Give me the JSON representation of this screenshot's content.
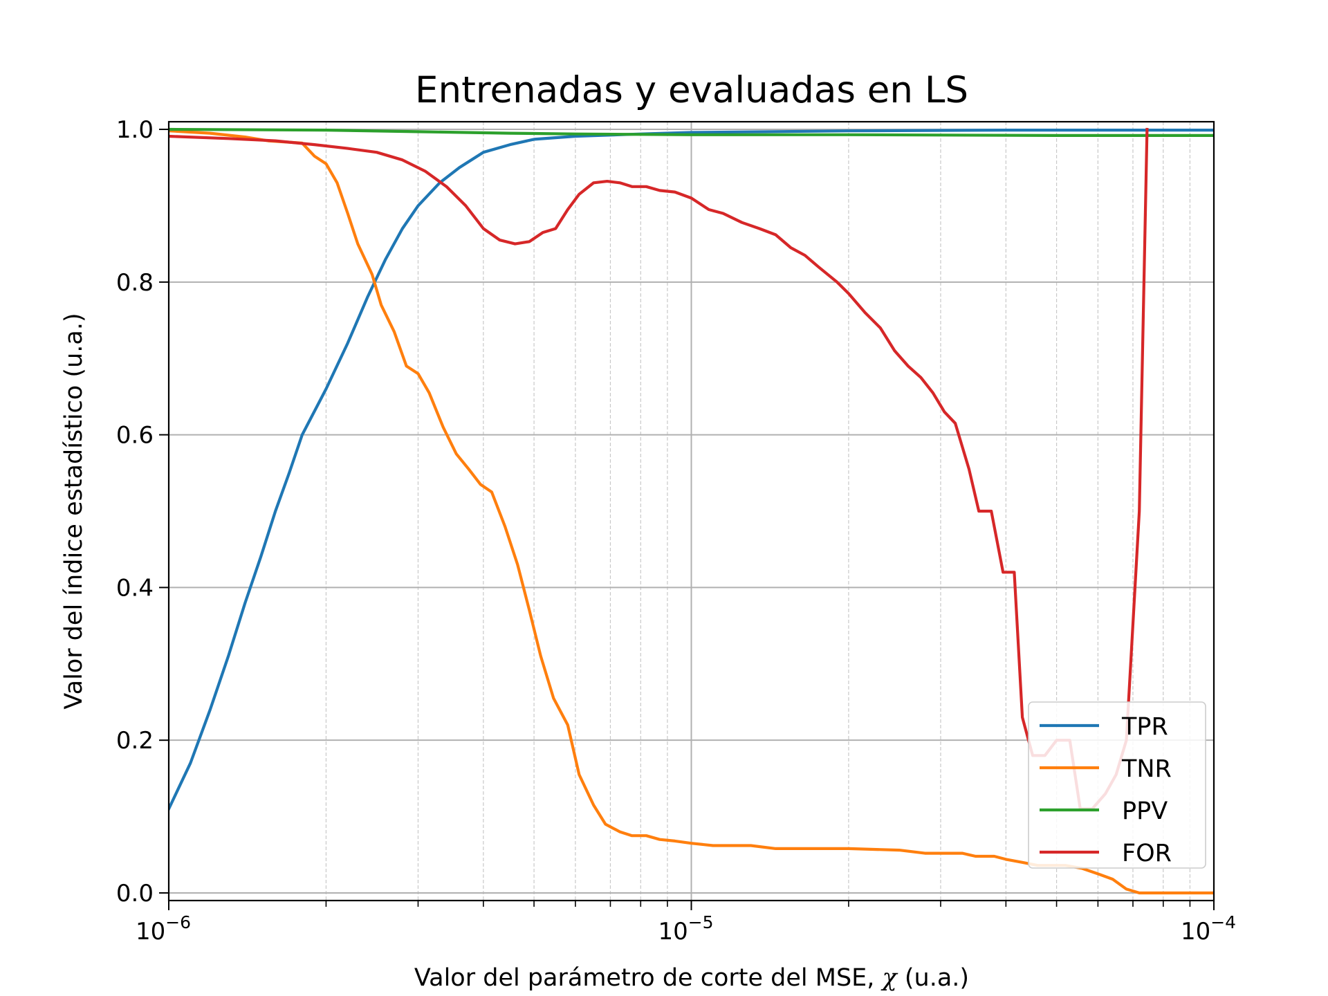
{
  "chart_data": {
    "type": "line",
    "title": "Entrenadas y evaluadas en LS",
    "xlabel_main": "Valor del parámetro de corte del MSE, ",
    "xlabel_symbol": "χ",
    "xlabel_tail": " (u.a.)",
    "ylabel": "Valor del índice estadístico (u.a.)",
    "xscale": "log",
    "xlim": [
      1e-06,
      0.0001
    ],
    "ylim": [
      -0.01,
      1.01
    ],
    "x_ticks": [
      {
        "value": 1e-06,
        "base": "10",
        "exp": "−6"
      },
      {
        "value": 1e-05,
        "base": "10",
        "exp": "−5"
      },
      {
        "value": 0.0001,
        "base": "10",
        "exp": "−4"
      }
    ],
    "y_ticks": [
      {
        "value": 0.0,
        "label": "0.0"
      },
      {
        "value": 0.2,
        "label": "0.2"
      },
      {
        "value": 0.4,
        "label": "0.4"
      },
      {
        "value": 0.6,
        "label": "0.6"
      },
      {
        "value": 0.8,
        "label": "0.8"
      },
      {
        "value": 1.0,
        "label": "1.0"
      }
    ],
    "grid": true,
    "legend_position": "lower-right",
    "series": [
      {
        "name": "TPR",
        "color": "#1f77b4",
        "points": [
          [
            1e-06,
            0.11
          ],
          [
            1.1e-06,
            0.17
          ],
          [
            1.2e-06,
            0.24
          ],
          [
            1.3e-06,
            0.31
          ],
          [
            1.4e-06,
            0.38
          ],
          [
            1.5e-06,
            0.44
          ],
          [
            1.6e-06,
            0.5
          ],
          [
            1.7e-06,
            0.55
          ],
          [
            1.8e-06,
            0.6
          ],
          [
            2e-06,
            0.66
          ],
          [
            2.2e-06,
            0.72
          ],
          [
            2.4e-06,
            0.78
          ],
          [
            2.6e-06,
            0.83
          ],
          [
            2.8e-06,
            0.87
          ],
          [
            3e-06,
            0.9
          ],
          [
            3.3e-06,
            0.93
          ],
          [
            3.6e-06,
            0.95
          ],
          [
            4e-06,
            0.97
          ],
          [
            4.5e-06,
            0.98
          ],
          [
            5e-06,
            0.987
          ],
          [
            6e-06,
            0.991
          ],
          [
            8e-06,
            0.994
          ],
          [
            1e-05,
            0.996
          ],
          [
            2e-05,
            0.998
          ],
          [
            4e-05,
            0.999
          ],
          [
            0.0001,
            0.999
          ]
        ]
      },
      {
        "name": "TNR",
        "color": "#ff7f0e",
        "points": [
          [
            1e-06,
            0.998
          ],
          [
            1.2e-06,
            0.995
          ],
          [
            1.4e-06,
            0.99
          ],
          [
            1.55e-06,
            0.985
          ],
          [
            1.8e-06,
            0.982
          ],
          [
            1.9e-06,
            0.965
          ],
          [
            2e-06,
            0.955
          ],
          [
            2.1e-06,
            0.93
          ],
          [
            2.2e-06,
            0.89
          ],
          [
            2.3e-06,
            0.85
          ],
          [
            2.45e-06,
            0.81
          ],
          [
            2.55e-06,
            0.77
          ],
          [
            2.7e-06,
            0.735
          ],
          [
            2.85e-06,
            0.69
          ],
          [
            3e-06,
            0.68
          ],
          [
            3.15e-06,
            0.655
          ],
          [
            3.35e-06,
            0.61
          ],
          [
            3.55e-06,
            0.575
          ],
          [
            3.75e-06,
            0.555
          ],
          [
            3.95e-06,
            0.535
          ],
          [
            4.15e-06,
            0.525
          ],
          [
            4.4e-06,
            0.48
          ],
          [
            4.65e-06,
            0.43
          ],
          [
            4.9e-06,
            0.37
          ],
          [
            5.15e-06,
            0.31
          ],
          [
            5.45e-06,
            0.255
          ],
          [
            5.8e-06,
            0.22
          ],
          [
            6.1e-06,
            0.155
          ],
          [
            6.5e-06,
            0.115
          ],
          [
            6.85e-06,
            0.09
          ],
          [
            7.3e-06,
            0.08
          ],
          [
            7.7e-06,
            0.075
          ],
          [
            8.2e-06,
            0.075
          ],
          [
            8.7e-06,
            0.07
          ],
          [
            9.3e-06,
            0.068
          ],
          [
            1e-05,
            0.065
          ],
          [
            1.1e-05,
            0.062
          ],
          [
            1.3e-05,
            0.062
          ],
          [
            1.45e-05,
            0.058
          ],
          [
            1.6e-05,
            0.058
          ],
          [
            2e-05,
            0.058
          ],
          [
            2.5e-05,
            0.056
          ],
          [
            2.8e-05,
            0.052
          ],
          [
            3.3e-05,
            0.052
          ],
          [
            3.5e-05,
            0.048
          ],
          [
            3.8e-05,
            0.048
          ],
          [
            4e-05,
            0.044
          ],
          [
            4.3e-05,
            0.04
          ],
          [
            4.6e-05,
            0.036
          ],
          [
            5.2e-05,
            0.036
          ],
          [
            5.6e-05,
            0.032
          ],
          [
            6e-05,
            0.025
          ],
          [
            6.4e-05,
            0.018
          ],
          [
            6.8e-05,
            0.005
          ],
          [
            7.2e-05,
            0.0
          ],
          [
            0.0001,
            0.0
          ]
        ]
      },
      {
        "name": "PPV",
        "color": "#2ca02c",
        "points": [
          [
            1e-06,
            1.0
          ],
          [
            2e-06,
            0.999
          ],
          [
            3e-06,
            0.997
          ],
          [
            4.5e-06,
            0.995
          ],
          [
            6e-06,
            0.994
          ],
          [
            1e-05,
            0.993
          ],
          [
            2e-05,
            0.993
          ],
          [
            5e-05,
            0.992
          ],
          [
            0.0001,
            0.992
          ]
        ]
      },
      {
        "name": "FOR",
        "color": "#d62728",
        "points": [
          [
            1e-06,
            0.991
          ],
          [
            1.3e-06,
            0.988
          ],
          [
            1.6e-06,
            0.985
          ],
          [
            1.9e-06,
            0.98
          ],
          [
            2.2e-06,
            0.975
          ],
          [
            2.5e-06,
            0.97
          ],
          [
            2.8e-06,
            0.96
          ],
          [
            3.1e-06,
            0.945
          ],
          [
            3.4e-06,
            0.925
          ],
          [
            3.7e-06,
            0.9
          ],
          [
            4e-06,
            0.87
          ],
          [
            4.3e-06,
            0.855
          ],
          [
            4.6e-06,
            0.85
          ],
          [
            4.9e-06,
            0.853
          ],
          [
            5.2e-06,
            0.865
          ],
          [
            5.5e-06,
            0.87
          ],
          [
            5.8e-06,
            0.895
          ],
          [
            6.1e-06,
            0.915
          ],
          [
            6.5e-06,
            0.93
          ],
          [
            6.9e-06,
            0.932
          ],
          [
            7.3e-06,
            0.93
          ],
          [
            7.7e-06,
            0.925
          ],
          [
            8.2e-06,
            0.925
          ],
          [
            8.7e-06,
            0.92
          ],
          [
            9.3e-06,
            0.918
          ],
          [
            1e-05,
            0.91
          ],
          [
            1.08e-05,
            0.895
          ],
          [
            1.15e-05,
            0.89
          ],
          [
            1.25e-05,
            0.878
          ],
          [
            1.35e-05,
            0.87
          ],
          [
            1.45e-05,
            0.862
          ],
          [
            1.55e-05,
            0.845
          ],
          [
            1.65e-05,
            0.835
          ],
          [
            1.75e-05,
            0.82
          ],
          [
            1.9e-05,
            0.8
          ],
          [
            2e-05,
            0.785
          ],
          [
            2.15e-05,
            0.76
          ],
          [
            2.3e-05,
            0.74
          ],
          [
            2.45e-05,
            0.71
          ],
          [
            2.6e-05,
            0.69
          ],
          [
            2.75e-05,
            0.675
          ],
          [
            2.9e-05,
            0.655
          ],
          [
            3.05e-05,
            0.63
          ],
          [
            3.2e-05,
            0.615
          ],
          [
            3.4e-05,
            0.555
          ],
          [
            3.55e-05,
            0.5
          ],
          [
            3.75e-05,
            0.5
          ],
          [
            3.95e-05,
            0.42
          ],
          [
            4.15e-05,
            0.42
          ],
          [
            4.3e-05,
            0.23
          ],
          [
            4.5e-05,
            0.18
          ],
          [
            4.75e-05,
            0.18
          ],
          [
            5e-05,
            0.2
          ],
          [
            5.3e-05,
            0.2
          ],
          [
            5.55e-05,
            0.11
          ],
          [
            5.85e-05,
            0.11
          ],
          [
            6.2e-05,
            0.13
          ],
          [
            6.5e-05,
            0.155
          ],
          [
            6.8e-05,
            0.2
          ],
          [
            7.2e-05,
            0.5
          ],
          [
            7.45e-05,
            1.0
          ]
        ]
      }
    ]
  }
}
